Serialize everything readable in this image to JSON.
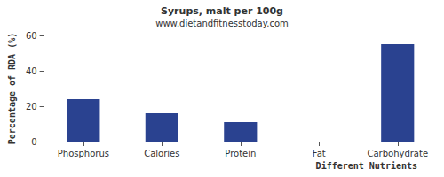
{
  "chart_data": {
    "type": "bar",
    "title": "Syrups, malt per 100g",
    "subtitle": "www.dietandfitnesstoday.com",
    "x_label": "Different Nutrients",
    "y_label": "Percentage of RDA (%)",
    "categories": [
      "Phosphorus",
      "Calories",
      "Protein",
      "Fat",
      "Carbohydrate"
    ],
    "values": [
      24,
      16,
      11,
      0,
      55
    ],
    "color": "#2a4290",
    "ylim": [
      0,
      60
    ],
    "yticks": [
      0,
      20,
      40,
      60
    ],
    "grid": false
  }
}
